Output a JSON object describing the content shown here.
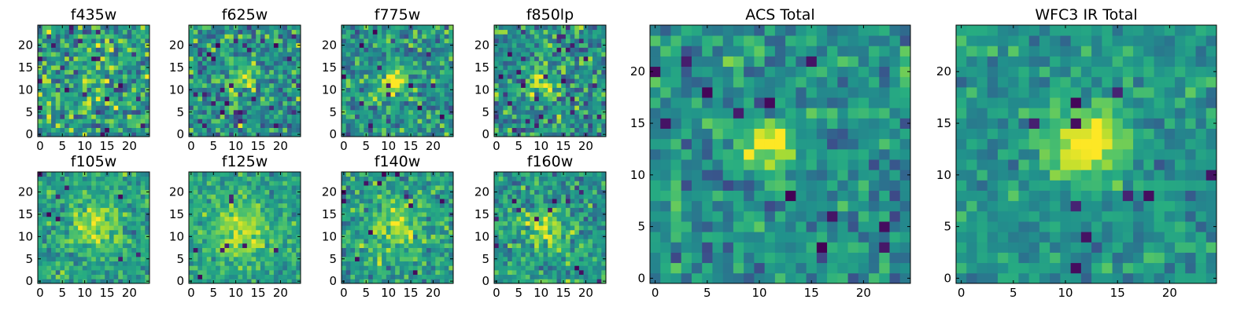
{
  "chart_data": [
    {
      "type": "heatmap",
      "title": "f435w",
      "xlim": [
        0,
        25
      ],
      "ylim": [
        0,
        25
      ],
      "grid": 25,
      "xticks": [
        0,
        5,
        10,
        15,
        20
      ],
      "yticks": [
        0,
        5,
        10,
        15,
        20
      ],
      "source": {
        "x": 12,
        "y": 14,
        "sigma": 3.0,
        "amp": 0.15
      },
      "noise": 0.38,
      "base": 0.55,
      "seed": 11,
      "dark_spots": 14
    },
    {
      "type": "heatmap",
      "title": "f625w",
      "xlim": [
        0,
        25
      ],
      "ylim": [
        0,
        25
      ],
      "grid": 25,
      "xticks": [
        0,
        5,
        10,
        15,
        20
      ],
      "yticks": [
        0,
        5,
        10,
        15,
        20
      ],
      "source": {
        "x": 11,
        "y": 13,
        "sigma": 2.5,
        "amp": 0.3
      },
      "noise": 0.34,
      "base": 0.5,
      "seed": 23,
      "dark_spots": 16
    },
    {
      "type": "heatmap",
      "title": "f775w",
      "xlim": [
        0,
        25
      ],
      "ylim": [
        0,
        25
      ],
      "grid": 25,
      "xticks": [
        0,
        5,
        10,
        15,
        20
      ],
      "yticks": [
        0,
        5,
        10,
        15,
        20
      ],
      "source": {
        "x": 11,
        "y": 12,
        "sigma": 2.2,
        "amp": 0.5
      },
      "noise": 0.3,
      "base": 0.52,
      "seed": 37,
      "dark_spots": 12
    },
    {
      "type": "heatmap",
      "title": "f850lp",
      "xlim": [
        0,
        25
      ],
      "ylim": [
        0,
        25
      ],
      "grid": 25,
      "xticks": [
        0,
        5,
        10,
        15,
        20
      ],
      "yticks": [
        0,
        5,
        10,
        15,
        20
      ],
      "source": {
        "x": 11,
        "y": 12,
        "sigma": 2.2,
        "amp": 0.35
      },
      "noise": 0.34,
      "base": 0.5,
      "seed": 51,
      "dark_spots": 16
    },
    {
      "type": "heatmap",
      "title": "f105w",
      "xlim": [
        0,
        25
      ],
      "ylim": [
        0,
        25
      ],
      "grid": 25,
      "xticks": [
        0,
        5,
        10,
        15,
        20
      ],
      "yticks": [
        0,
        5,
        10,
        15,
        20
      ],
      "source": {
        "x": 12,
        "y": 13,
        "sigma": 3.5,
        "amp": 0.35
      },
      "noise": 0.22,
      "base": 0.58,
      "seed": 67,
      "dark_spots": 8
    },
    {
      "type": "heatmap",
      "title": "f125w",
      "xlim": [
        0,
        25
      ],
      "ylim": [
        0,
        25
      ],
      "grid": 25,
      "xticks": [
        0,
        5,
        10,
        15,
        20
      ],
      "yticks": [
        0,
        5,
        10,
        15,
        20
      ],
      "source": {
        "x": 11,
        "y": 11,
        "sigma": 4.5,
        "amp": 0.3
      },
      "noise": 0.2,
      "base": 0.58,
      "seed": 79,
      "dark_spots": 8
    },
    {
      "type": "heatmap",
      "title": "f140w",
      "xlim": [
        0,
        25
      ],
      "ylim": [
        0,
        25
      ],
      "grid": 25,
      "xticks": [
        0,
        5,
        10,
        15,
        20
      ],
      "yticks": [
        0,
        5,
        10,
        15,
        20
      ],
      "source": {
        "x": 12,
        "y": 12,
        "sigma": 4.0,
        "amp": 0.3
      },
      "noise": 0.26,
      "base": 0.56,
      "seed": 91,
      "dark_spots": 12
    },
    {
      "type": "heatmap",
      "title": "f160w",
      "xlim": [
        0,
        25
      ],
      "ylim": [
        0,
        25
      ],
      "grid": 25,
      "xticks": [
        0,
        5,
        10,
        15,
        20
      ],
      "yticks": [
        0,
        5,
        10,
        15,
        20
      ],
      "source": {
        "x": 11,
        "y": 12,
        "sigma": 3.0,
        "amp": 0.35
      },
      "noise": 0.26,
      "base": 0.54,
      "seed": 103,
      "dark_spots": 12
    },
    {
      "type": "heatmap",
      "title": "ACS Total",
      "xlim": [
        0,
        25
      ],
      "ylim": [
        0,
        25
      ],
      "grid": 25,
      "xticks": [
        0,
        5,
        10,
        15,
        20
      ],
      "yticks": [
        0,
        5,
        10,
        15,
        20
      ],
      "source": {
        "x": 11,
        "y": 13,
        "sigma": 1.6,
        "amp": 0.55
      },
      "noise": 0.24,
      "base": 0.5,
      "seed": 131,
      "dark_spots": 12
    },
    {
      "type": "heatmap",
      "title": "WFC3 IR Total",
      "xlim": [
        0,
        25
      ],
      "ylim": [
        0,
        25
      ],
      "grid": 25,
      "xticks": [
        0,
        5,
        10,
        15,
        20
      ],
      "yticks": [
        0,
        5,
        10,
        15,
        20
      ],
      "source": {
        "x": 12,
        "y": 13,
        "sigma": 2.6,
        "amp": 0.5
      },
      "noise": 0.18,
      "base": 0.52,
      "seed": 157,
      "dark_spots": 10
    }
  ],
  "colors": {
    "colormap": "viridis",
    "dark": "#440154",
    "mid": "#21918c",
    "bright": "#fde725"
  }
}
